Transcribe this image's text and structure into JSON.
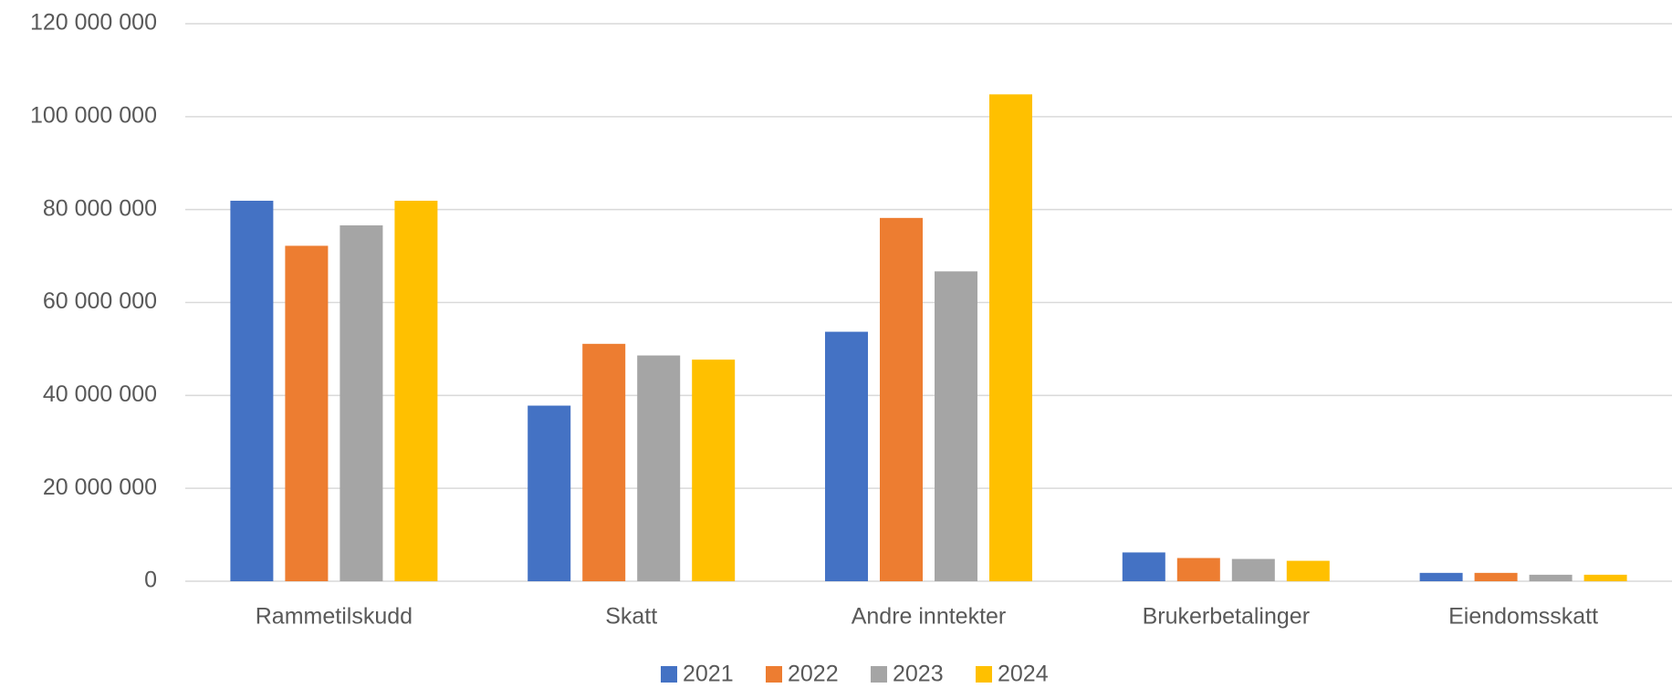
{
  "chart_data": {
    "type": "bar",
    "categories": [
      "Rammetilskudd",
      "Skatt",
      "Andre inntekter",
      "Brukerbetalinger",
      "Eiendomsskatt"
    ],
    "series": [
      {
        "name": "2021",
        "color": "#4472c4",
        "values": [
          81900000,
          37800000,
          53700000,
          6200000,
          1800000
        ]
      },
      {
        "name": "2022",
        "color": "#ed7d31",
        "values": [
          72200000,
          51100000,
          78200000,
          5000000,
          1800000
        ]
      },
      {
        "name": "2023",
        "color": "#a5a5a5",
        "values": [
          76600000,
          48600000,
          66700000,
          4800000,
          1400000
        ]
      },
      {
        "name": "2024",
        "color": "#ffc000",
        "values": [
          81900000,
          47700000,
          104800000,
          4400000,
          1400000
        ]
      }
    ],
    "ylim": [
      0,
      120000000
    ],
    "yticks": [
      0,
      {
        "value": 20000000,
        "label": "20 000 000"
      },
      {
        "value": 40000000,
        "label": "40 000 000"
      },
      {
        "value": 60000000,
        "label": "60 000 000"
      },
      {
        "value": 80000000,
        "label": "80 000 000"
      },
      {
        "value": 100000000,
        "label": "100 000 000"
      },
      {
        "value": 120000000,
        "label": "120 000 000"
      }
    ],
    "grid": true
  }
}
